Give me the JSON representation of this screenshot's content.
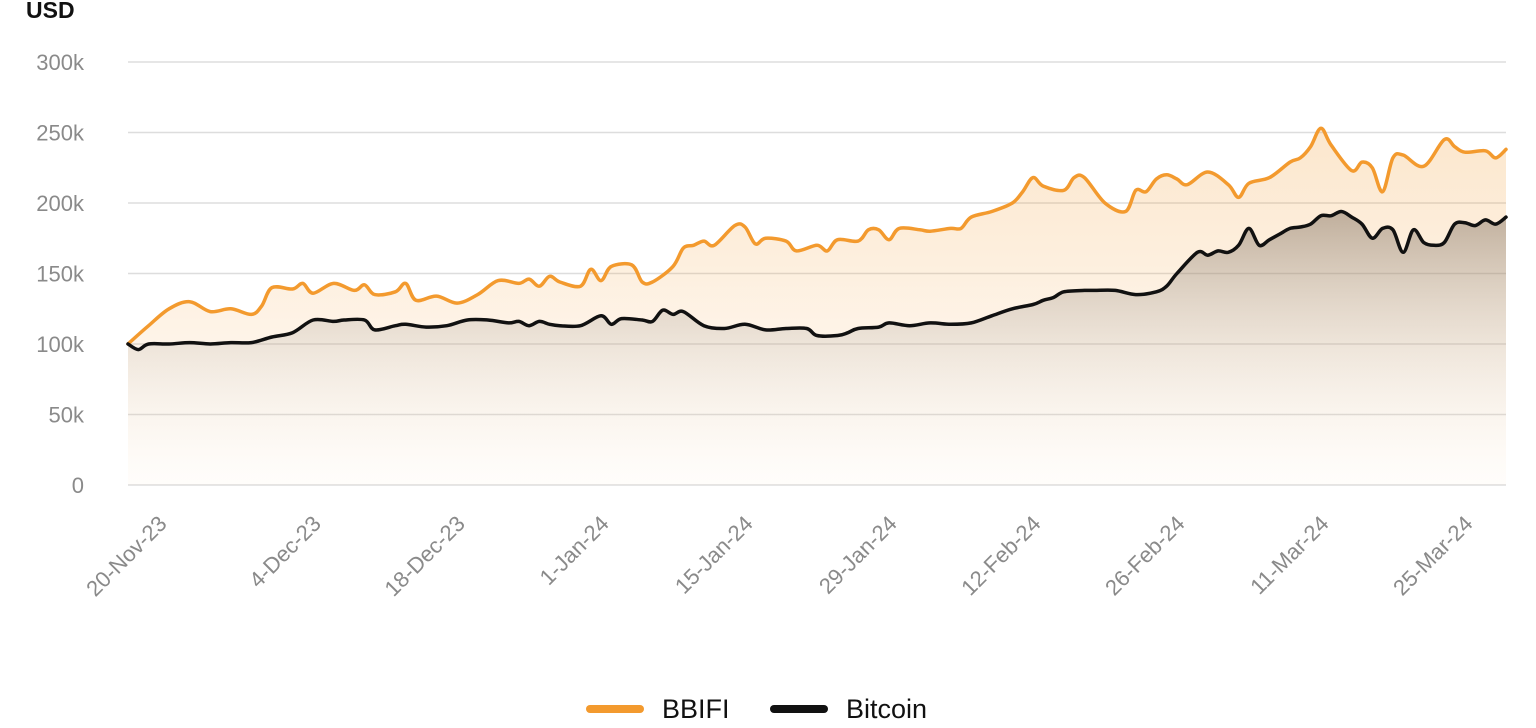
{
  "chart_data": {
    "type": "area",
    "y_unit": "USD",
    "ylim": [
      0,
      300000
    ],
    "y_ticks": [
      0,
      50000,
      100000,
      150000,
      200000,
      250000,
      300000
    ],
    "y_tick_labels": [
      "0",
      "50k",
      "100k",
      "150k",
      "200k",
      "250k",
      "300k"
    ],
    "x_tick_labels": [
      "20-Nov-23",
      "4-Dec-23",
      "18-Dec-23",
      "1-Jan-24",
      "15-Jan-24",
      "29-Jan-24",
      "12-Feb-24",
      "26-Feb-24",
      "11-Mar-24",
      "25-Mar-24"
    ],
    "x_range": [
      "2023-11-20",
      "2024-03-28"
    ],
    "grid": true,
    "legend_position": "bottom-center",
    "series": [
      {
        "name": "BBIFI",
        "color": "#F39A2E",
        "points": [
          [
            "2023-11-20",
            100000
          ],
          [
            "2023-11-22",
            113000
          ],
          [
            "2023-11-24",
            125000
          ],
          [
            "2023-11-26",
            130000
          ],
          [
            "2023-11-28",
            123000
          ],
          [
            "2023-11-30",
            125000
          ],
          [
            "2023-12-02",
            121000
          ],
          [
            "2023-12-03",
            127000
          ],
          [
            "2023-12-04",
            140000
          ],
          [
            "2023-12-06",
            139000
          ],
          [
            "2023-12-07",
            143000
          ],
          [
            "2023-12-08",
            136000
          ],
          [
            "2023-12-10",
            143000
          ],
          [
            "2023-12-12",
            138000
          ],
          [
            "2023-12-13",
            142000
          ],
          [
            "2023-12-14",
            135000
          ],
          [
            "2023-12-16",
            137000
          ],
          [
            "2023-12-17",
            143000
          ],
          [
            "2023-12-18",
            131000
          ],
          [
            "2023-12-20",
            134000
          ],
          [
            "2023-12-22",
            129000
          ],
          [
            "2023-12-24",
            135000
          ],
          [
            "2023-12-26",
            145000
          ],
          [
            "2023-12-28",
            143000
          ],
          [
            "2023-12-29",
            146000
          ],
          [
            "2023-12-30",
            141000
          ],
          [
            "2023-12-31",
            148000
          ],
          [
            "2024-01-01",
            144000
          ],
          [
            "2024-01-03",
            141000
          ],
          [
            "2024-01-04",
            153000
          ],
          [
            "2024-01-05",
            145000
          ],
          [
            "2024-01-06",
            155000
          ],
          [
            "2024-01-08",
            156000
          ],
          [
            "2024-01-09",
            144000
          ],
          [
            "2024-01-10",
            144000
          ],
          [
            "2024-01-12",
            155000
          ],
          [
            "2024-01-13",
            168000
          ],
          [
            "2024-01-14",
            170000
          ],
          [
            "2024-01-15",
            173000
          ],
          [
            "2024-01-16",
            170000
          ],
          [
            "2024-01-18",
            184000
          ],
          [
            "2024-01-19",
            183000
          ],
          [
            "2024-01-20",
            171000
          ],
          [
            "2024-01-21",
            175000
          ],
          [
            "2024-01-23",
            173000
          ],
          [
            "2024-01-24",
            166000
          ],
          [
            "2024-01-26",
            170000
          ],
          [
            "2024-01-27",
            166000
          ],
          [
            "2024-01-28",
            174000
          ],
          [
            "2024-01-30",
            173000
          ],
          [
            "2024-01-31",
            181000
          ],
          [
            "2024-02-01",
            181000
          ],
          [
            "2024-02-02",
            174000
          ],
          [
            "2024-02-03",
            182000
          ],
          [
            "2024-02-05",
            181000
          ],
          [
            "2024-02-06",
            180000
          ],
          [
            "2024-02-08",
            182000
          ],
          [
            "2024-02-09",
            182000
          ],
          [
            "2024-02-10",
            190000
          ],
          [
            "2024-02-12",
            194000
          ],
          [
            "2024-02-14",
            200000
          ],
          [
            "2024-02-15",
            208000
          ],
          [
            "2024-02-16",
            218000
          ],
          [
            "2024-02-17",
            212000
          ],
          [
            "2024-02-19",
            209000
          ],
          [
            "2024-02-20",
            218000
          ],
          [
            "2024-02-21",
            218000
          ],
          [
            "2024-02-23",
            200000
          ],
          [
            "2024-02-25",
            194000
          ],
          [
            "2024-02-26",
            209000
          ],
          [
            "2024-02-27",
            208000
          ],
          [
            "2024-02-28",
            217000
          ],
          [
            "2024-02-29",
            220000
          ],
          [
            "2024-03-01",
            217000
          ],
          [
            "2024-03-02",
            213000
          ],
          [
            "2024-03-04",
            222000
          ],
          [
            "2024-03-06",
            213000
          ],
          [
            "2024-03-07",
            204000
          ],
          [
            "2024-03-08",
            214000
          ],
          [
            "2024-03-10",
            218000
          ],
          [
            "2024-03-12",
            229000
          ],
          [
            "2024-03-13",
            232000
          ],
          [
            "2024-03-14",
            240000
          ],
          [
            "2024-03-15",
            253000
          ],
          [
            "2024-03-16",
            241000
          ],
          [
            "2024-03-18",
            223000
          ],
          [
            "2024-03-19",
            229000
          ],
          [
            "2024-03-20",
            225000
          ],
          [
            "2024-03-21",
            208000
          ],
          [
            "2024-03-22",
            232000
          ],
          [
            "2024-03-23",
            234000
          ],
          [
            "2024-03-25",
            226000
          ],
          [
            "2024-03-27",
            245000
          ],
          [
            "2024-03-28",
            240000
          ],
          [
            "2024-03-29",
            236000
          ],
          [
            "2024-03-31",
            237000
          ],
          [
            "2024-04-01",
            232000
          ],
          [
            "2024-04-02",
            238000
          ]
        ]
      },
      {
        "name": "Bitcoin",
        "color": "#111111",
        "points": [
          [
            "2023-11-20",
            100000
          ],
          [
            "2023-11-21",
            96000
          ],
          [
            "2023-11-22",
            100000
          ],
          [
            "2023-11-24",
            100000
          ],
          [
            "2023-11-26",
            101000
          ],
          [
            "2023-11-28",
            100000
          ],
          [
            "2023-11-30",
            101000
          ],
          [
            "2023-12-02",
            101000
          ],
          [
            "2023-12-04",
            105000
          ],
          [
            "2023-12-06",
            108000
          ],
          [
            "2023-12-08",
            117000
          ],
          [
            "2023-12-10",
            116000
          ],
          [
            "2023-12-11",
            117000
          ],
          [
            "2023-12-13",
            117000
          ],
          [
            "2023-12-14",
            110000
          ],
          [
            "2023-12-16",
            113000
          ],
          [
            "2023-12-17",
            114000
          ],
          [
            "2023-12-19",
            112000
          ],
          [
            "2023-12-21",
            113000
          ],
          [
            "2023-12-23",
            117000
          ],
          [
            "2023-12-25",
            117000
          ],
          [
            "2023-12-27",
            115000
          ],
          [
            "2023-12-28",
            116000
          ],
          [
            "2023-12-29",
            113000
          ],
          [
            "2023-12-30",
            116000
          ],
          [
            "2023-12-31",
            114000
          ],
          [
            "2024-01-01",
            113000
          ],
          [
            "2024-01-03",
            113000
          ],
          [
            "2024-01-05",
            120000
          ],
          [
            "2024-01-06",
            114000
          ],
          [
            "2024-01-07",
            118000
          ],
          [
            "2024-01-09",
            117000
          ],
          [
            "2024-01-10",
            116000
          ],
          [
            "2024-01-11",
            124000
          ],
          [
            "2024-01-12",
            121000
          ],
          [
            "2024-01-13",
            123000
          ],
          [
            "2024-01-15",
            113000
          ],
          [
            "2024-01-17",
            111000
          ],
          [
            "2024-01-19",
            114000
          ],
          [
            "2024-01-21",
            110000
          ],
          [
            "2024-01-23",
            111000
          ],
          [
            "2024-01-25",
            111000
          ],
          [
            "2024-01-26",
            106000
          ],
          [
            "2024-01-28",
            106000
          ],
          [
            "2024-01-29",
            108000
          ],
          [
            "2024-01-30",
            111000
          ],
          [
            "2024-02-01",
            112000
          ],
          [
            "2024-02-02",
            115000
          ],
          [
            "2024-02-04",
            113000
          ],
          [
            "2024-02-06",
            115000
          ],
          [
            "2024-02-08",
            114000
          ],
          [
            "2024-02-10",
            115000
          ],
          [
            "2024-02-12",
            120000
          ],
          [
            "2024-02-14",
            125000
          ],
          [
            "2024-02-16",
            128000
          ],
          [
            "2024-02-17",
            131000
          ],
          [
            "2024-02-18",
            133000
          ],
          [
            "2024-02-19",
            137000
          ],
          [
            "2024-02-21",
            138000
          ],
          [
            "2024-02-22",
            138000
          ],
          [
            "2024-02-24",
            138000
          ],
          [
            "2024-02-26",
            135000
          ],
          [
            "2024-02-28",
            137000
          ],
          [
            "2024-02-29",
            141000
          ],
          [
            "2024-03-01",
            150000
          ],
          [
            "2024-03-03",
            165000
          ],
          [
            "2024-03-04",
            163000
          ],
          [
            "2024-03-05",
            166000
          ],
          [
            "2024-03-06",
            165000
          ],
          [
            "2024-03-07",
            170000
          ],
          [
            "2024-03-08",
            182000
          ],
          [
            "2024-03-09",
            170000
          ],
          [
            "2024-03-10",
            174000
          ],
          [
            "2024-03-11",
            178000
          ],
          [
            "2024-03-12",
            182000
          ],
          [
            "2024-03-13",
            183000
          ],
          [
            "2024-03-14",
            185000
          ],
          [
            "2024-03-15",
            191000
          ],
          [
            "2024-03-16",
            191000
          ],
          [
            "2024-03-17",
            194000
          ],
          [
            "2024-03-18",
            190000
          ],
          [
            "2024-03-19",
            185000
          ],
          [
            "2024-03-20",
            175000
          ],
          [
            "2024-03-21",
            182000
          ],
          [
            "2024-03-22",
            181000
          ],
          [
            "2024-03-23",
            165000
          ],
          [
            "2024-03-24",
            181000
          ],
          [
            "2024-03-25",
            172000
          ],
          [
            "2024-03-26",
            170000
          ],
          [
            "2024-03-27",
            172000
          ],
          [
            "2024-03-28",
            185000
          ],
          [
            "2024-03-29",
            186000
          ],
          [
            "2024-03-30",
            184000
          ],
          [
            "2024-03-31",
            188000
          ],
          [
            "2024-04-01",
            185000
          ],
          [
            "2024-04-02",
            190000
          ]
        ]
      }
    ]
  }
}
